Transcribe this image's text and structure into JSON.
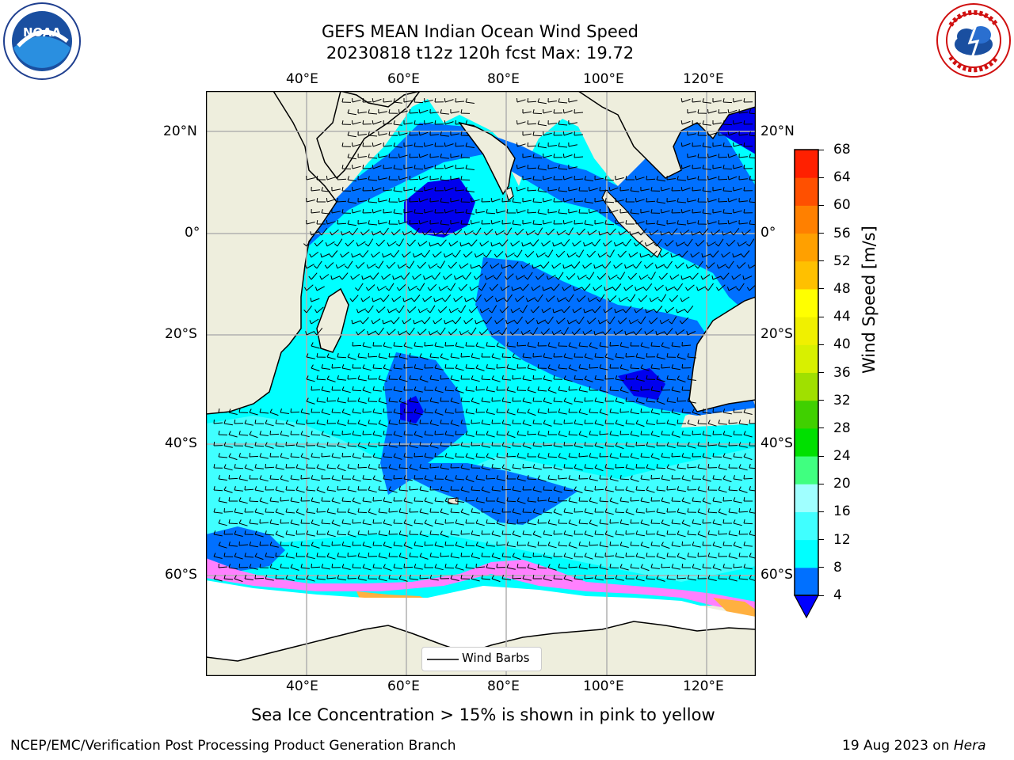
{
  "title": {
    "line1": "GEFS MEAN Indian Ocean Wind Speed",
    "line2": "20230818 t12z 120h fcst   Max: 19.72"
  },
  "logos": {
    "left": {
      "icon": "noaa-logo",
      "text": "NOAA"
    },
    "right": {
      "icon": "national-weather-service-logo"
    }
  },
  "map": {
    "lon_ticks": [
      "40°E",
      "60°E",
      "80°E",
      "100°E",
      "120°E"
    ],
    "lat_ticks": [
      "20°N",
      "0°",
      "20°S",
      "40°S",
      "60°S"
    ],
    "legend_label": "Wind Barbs",
    "colors": {
      "land": "#eeeedd",
      "sea_ice": "#ffffff",
      "grid": "#b0b0b0",
      "wind_4_8": "#0070ff",
      "wind_8_12": "#00ffff",
      "wind_12_16": "#40ffff",
      "wind_below_4": "#0000ee"
    }
  },
  "colorbar": {
    "label": "Wind Speed [m/s]",
    "ticks": [
      "4",
      "8",
      "12",
      "16",
      "20",
      "24",
      "28",
      "32",
      "36",
      "40",
      "44",
      "48",
      "52",
      "56",
      "60",
      "64",
      "68"
    ],
    "colors": [
      "#0070ff",
      "#00ffff",
      "#40ffff",
      "#a0ffff",
      "#40ff80",
      "#00e000",
      "#40d000",
      "#a0e000",
      "#d8f000",
      "#f0f000",
      "#ffff00",
      "#ffc000",
      "#ffa000",
      "#ff8000",
      "#ff5000",
      "#ff2000"
    ],
    "under_color": "#0000ff"
  },
  "caption": "Sea Ice Concentration > 15% is shown in pink to yellow",
  "footer": {
    "left": "NCEP/EMC/Verification Post Processing Product Generation Branch",
    "right_date": "19 Aug 2023 on",
    "right_host": "Hera"
  }
}
